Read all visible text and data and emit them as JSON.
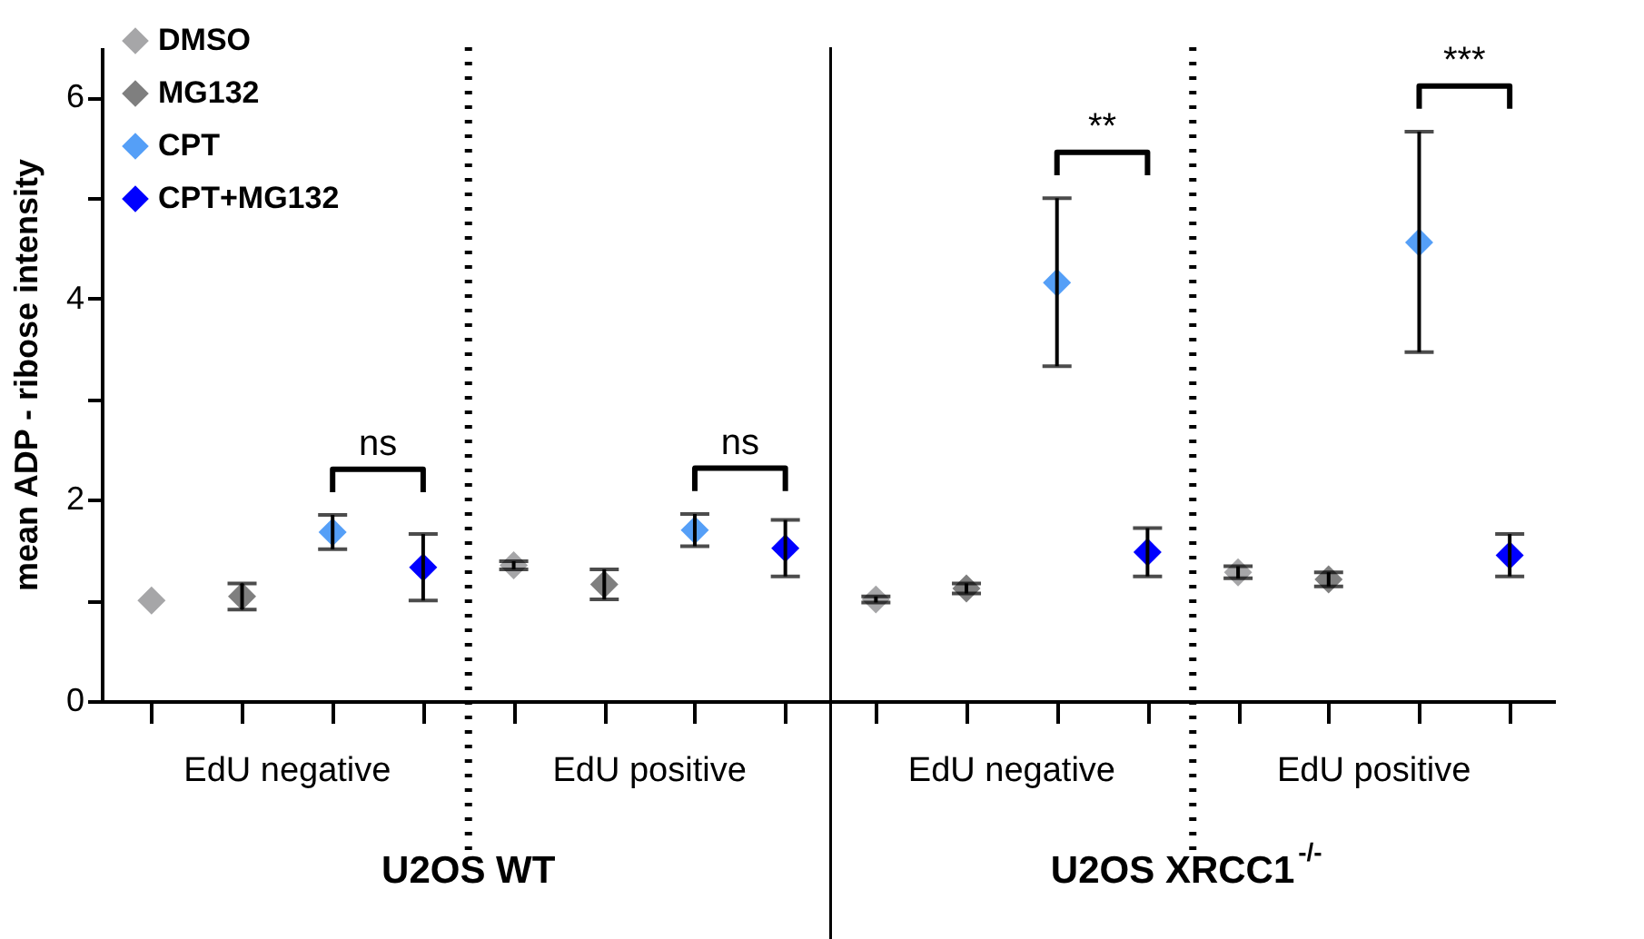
{
  "chart_data": {
    "type": "scatter",
    "ylabel": "mean ADP - ribose intensity",
    "categories": [
      null,
      null,
      null,
      null,
      null,
      null,
      null,
      null,
      null,
      null,
      null,
      null,
      null,
      null,
      null,
      null
    ],
    "ylim": [
      0,
      6.5
    ],
    "yticks": [
      0,
      {
        "value": 1,
        "label": null
      },
      2,
      {
        "value": 3,
        "label": null
      },
      4,
      {
        "value": 5,
        "label": null
      },
      6
    ],
    "series": [
      {
        "name": "DMSO",
        "color": "#a6a6a8",
        "values": [
          1.0,
          null,
          null,
          null,
          1.35,
          null,
          null,
          null,
          1.01,
          null,
          null,
          null,
          1.28,
          null,
          null,
          null
        ],
        "errors": [
          null,
          null,
          null,
          null,
          0.04,
          null,
          null,
          null,
          0.03,
          null,
          null,
          null,
          0.06,
          null,
          null,
          null
        ]
      },
      {
        "name": "MG132",
        "color": "#7f7f7f",
        "values": [
          null,
          1.04,
          null,
          null,
          null,
          1.16,
          null,
          null,
          null,
          1.12,
          null,
          null,
          null,
          1.21,
          null,
          null
        ],
        "errors": [
          null,
          0.13,
          null,
          null,
          null,
          0.15,
          null,
          null,
          null,
          0.05,
          null,
          null,
          null,
          0.07,
          null,
          null
        ]
      },
      {
        "name": "CPT",
        "color": "#559ff7",
        "values": [
          null,
          null,
          1.68,
          null,
          null,
          null,
          1.7,
          null,
          null,
          null,
          4.16,
          null,
          null,
          null,
          4.56,
          null
        ],
        "errors": [
          null,
          null,
          0.17,
          null,
          null,
          null,
          0.16,
          null,
          null,
          null,
          [
            3.33,
            5.0
          ],
          null,
          null,
          null,
          [
            3.47,
            5.66
          ],
          null
        ]
      },
      {
        "name": "CPT+MG132",
        "color": "#0000ff",
        "values": [
          null,
          null,
          null,
          1.33,
          null,
          null,
          null,
          1.52,
          null,
          null,
          null,
          1.48,
          null,
          null,
          null,
          1.45
        ],
        "errors": [
          null,
          null,
          null,
          0.33,
          null,
          null,
          null,
          0.28,
          null,
          null,
          null,
          0.24,
          null,
          null,
          null,
          0.21
        ]
      }
    ],
    "annotations": [
      "EdU negative",
      "EdU positive",
      "EdU negative",
      "EdU positive",
      "U2OS WT",
      "U2OS XRCC1$^{-/-}$",
      "ns",
      "ns",
      "**",
      "***"
    ],
    "marker": "diamond",
    "legend": "top left",
    "grid": false
  }
}
